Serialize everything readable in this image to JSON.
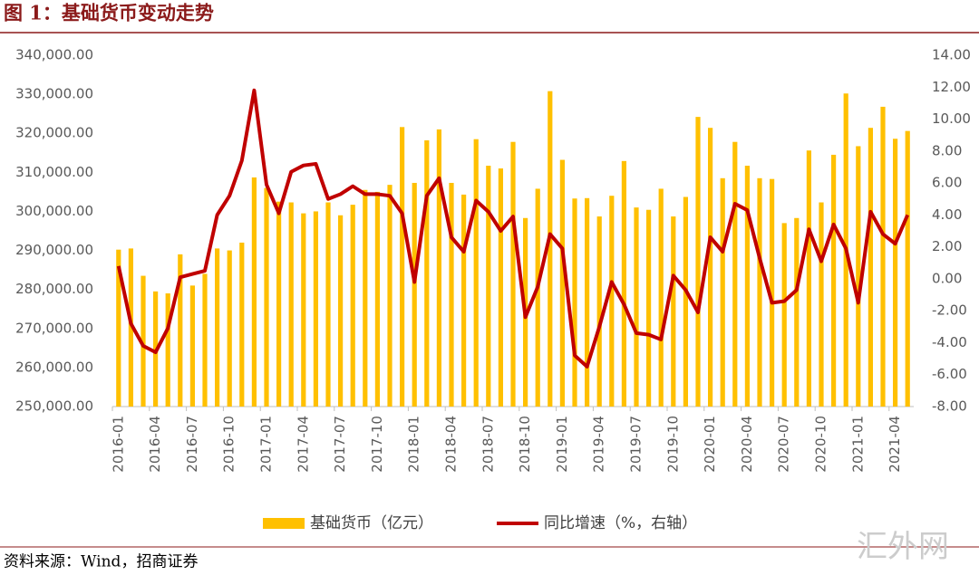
{
  "chart_data": {
    "type": "bar_line",
    "title": "图 1：基础货币变动走势",
    "source": "资料来源：Wind，招商证券",
    "watermark": "汇外网",
    "categories": [
      "2016-01",
      null,
      null,
      "2016-04",
      null,
      null,
      "2016-07",
      null,
      null,
      "2016-10",
      null,
      null,
      "2017-01",
      null,
      null,
      "2017-04",
      null,
      null,
      "2017-07",
      null,
      null,
      "2017-10",
      null,
      null,
      "2018-01",
      null,
      null,
      "2018-04",
      null,
      null,
      "2018-07",
      null,
      null,
      "2018-10",
      null,
      null,
      "2019-01",
      null,
      null,
      "2019-04",
      null,
      null,
      "2019-07",
      null,
      null,
      "2019-10",
      null,
      null,
      "2020-01",
      null,
      null,
      "2020-04",
      null,
      null,
      "2020-07",
      null,
      null,
      "2020-10",
      null,
      null,
      "2021-01",
      null,
      null,
      "2021-04",
      null
    ],
    "series": [
      {
        "name": "基础货币（亿元）",
        "type": "bar",
        "color": "#FFC000",
        "axis": "y",
        "values": [
          290200,
          290500,
          283500,
          279500,
          279000,
          289000,
          281000,
          284000,
          290500,
          290000,
          292000,
          308700,
          306000,
          302500,
          302300,
          299500,
          300000,
          302300,
          299000,
          301700,
          305500,
          305000,
          306800,
          321600,
          307300,
          318200,
          321000,
          307300,
          304300,
          318500,
          311700,
          311000,
          317800,
          298300,
          305800,
          330800,
          313200,
          303300,
          303400,
          298700,
          304000,
          312900,
          301000,
          300400,
          305800,
          298700,
          303700,
          324200,
          321400,
          308500,
          317800,
          311700,
          308500,
          308300,
          297000,
          298300,
          315600,
          302300,
          314500,
          330200,
          316700,
          321400,
          326800,
          318600,
          320600
        ]
      },
      {
        "name": "同比增速（%，右轴）",
        "type": "line",
        "color": "#C00000",
        "axis": "y2",
        "values": [
          0.8,
          -2.8,
          -4.2,
          -4.6,
          -3.1,
          0.1,
          0.3,
          0.5,
          4.0,
          5.2,
          7.4,
          11.8,
          5.9,
          4.1,
          6.7,
          7.1,
          7.2,
          5.0,
          5.3,
          5.8,
          5.3,
          5.3,
          5.2,
          4.1,
          -0.2,
          5.2,
          6.3,
          2.6,
          1.7,
          4.9,
          4.2,
          3.0,
          3.9,
          -2.4,
          -0.5,
          2.8,
          1.9,
          -4.8,
          -5.5,
          -3.0,
          -0.2,
          -1.6,
          -3.4,
          -3.5,
          -3.8,
          0.2,
          -0.7,
          -2.1,
          2.6,
          1.7,
          4.7,
          4.3,
          1.3,
          -1.5,
          -1.4,
          -0.7,
          3.1,
          1.1,
          3.4,
          1.9,
          -1.5,
          4.2,
          2.8,
          2.2,
          4.0
        ]
      }
    ],
    "ylim": [
      250000,
      340000
    ],
    "yticks": [
      {
        "value": 250000,
        "label": "250,000.00"
      },
      {
        "value": 260000,
        "label": "260,000.00"
      },
      {
        "value": 270000,
        "label": "270,000.00"
      },
      {
        "value": 280000,
        "label": "280,000.00"
      },
      {
        "value": 290000,
        "label": "290,000.00"
      },
      {
        "value": 300000,
        "label": "300,000.00"
      },
      {
        "value": 310000,
        "label": "310,000.00"
      },
      {
        "value": 320000,
        "label": "320,000.00"
      },
      {
        "value": 330000,
        "label": "330,000.00"
      },
      {
        "value": 340000,
        "label": "340,000.00"
      }
    ],
    "y2lim": [
      -8,
      14
    ],
    "y2ticks": [
      {
        "value": -8,
        "label": "-8.00"
      },
      {
        "value": -6,
        "label": "-6.00"
      },
      {
        "value": -4,
        "label": "-4.00"
      },
      {
        "value": -2,
        "label": "-2.00"
      },
      {
        "value": 0,
        "label": "0.00"
      },
      {
        "value": 2,
        "label": "2.00"
      },
      {
        "value": 4,
        "label": "4.00"
      },
      {
        "value": 6,
        "label": "6.00"
      },
      {
        "value": 8,
        "label": "8.00"
      },
      {
        "value": 10,
        "label": "10.00"
      },
      {
        "value": 12,
        "label": "12.00"
      },
      {
        "value": 14,
        "label": "14.00"
      }
    ],
    "grid": false,
    "legend": "bottom"
  }
}
